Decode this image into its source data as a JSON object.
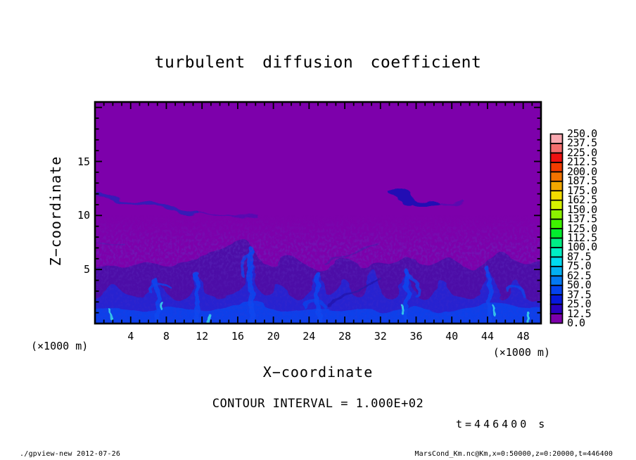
{
  "header": {
    "title": "turbulent diffusion coefficient"
  },
  "axes": {
    "x_label": "X−coordinate",
    "z_label": "Z−coordinate",
    "x_unit_left": "(×1000 m)",
    "x_unit_right": "(×1000 m)",
    "x_tick_labels": [
      4,
      8,
      12,
      16,
      20,
      24,
      28,
      32,
      36,
      40,
      44,
      48
    ],
    "z_tick_labels": [
      5,
      10,
      15
    ]
  },
  "annotations": {
    "contour_interval": "CONTOUR INTERVAL = 1.000E+02",
    "time_stamp": "t=446400 s"
  },
  "footer": {
    "command": "./gpview-new  2012-07-26",
    "data_ref": "MarsCond_Km.nc@Km,x=0:50000,z=0:20000,t=446400"
  },
  "chart_data": {
    "type": "heatmap",
    "title": "turbulent diffusion coefficient",
    "xlabel": "X−coordinate (×1000 m)",
    "ylabel": "Z−coordinate (×1000 m)",
    "x_range_km": [
      0,
      50
    ],
    "z_range_km": [
      0,
      20.5
    ],
    "x_major_tick_step_km": 4,
    "x_minor_tick_step_km": 1,
    "z_major_tick_step_km": 5,
    "z_minor_tick_step_km": 1,
    "time_seconds": 446400,
    "contour_interval": 100.0,
    "colorbar": {
      "min": 0.0,
      "max": 250.0,
      "step": 12.5,
      "tick_labels_top_to_bottom": [
        "250.0",
        "237.5",
        "225.0",
        "212.5",
        "200.0",
        "187.5",
        "175.0",
        "162.5",
        "150.0",
        "137.5",
        "125.0",
        "112.5",
        "100.0",
        "87.5",
        "75.0",
        "62.5",
        "50.0",
        "37.5",
        "25.0",
        "12.5",
        "0.0"
      ],
      "colors_low_to_high": [
        "#7d00ab",
        "#2a00c0",
        "#0618dc",
        "#0442ee",
        "#0378f2",
        "#02aff2",
        "#00daf0",
        "#00eec4",
        "#00ee85",
        "#03ec2e",
        "#3ff200",
        "#8cf200",
        "#d6f200",
        "#f2dc00",
        "#f2a800",
        "#f27300",
        "#f23c00",
        "#ee1111",
        "#f56e6e",
        "#f9a8b0"
      ]
    },
    "field": {
      "background_color": "#7d00ab",
      "description": "Diffusion coefficient is near 0 (purple) over most of the domain; a convective boundary layer below z ≈ 5–7 km contains turbulent plumes and vortices with values of roughly 12.5–75 (dark blue to blue with small cyan patches); thin elevated turbulent streaks appear near z ≈ 11.5 km at x ≈ 0–9 km and x ≈ 33–39 km.",
      "boundary_layer_top_km": [
        5,
        7.5
      ],
      "updraft_plume_x_km": [
        2,
        7,
        11.5,
        17.5,
        20.7,
        25,
        28,
        31.2,
        35,
        38.8,
        44.2,
        47.3
      ],
      "elevated_streaks": [
        {
          "x_km": [
            0,
            9.5
          ],
          "z_km": 11.6
        },
        {
          "x_km": [
            32.9,
            38.8
          ],
          "z_km": 11.5
        }
      ]
    }
  }
}
